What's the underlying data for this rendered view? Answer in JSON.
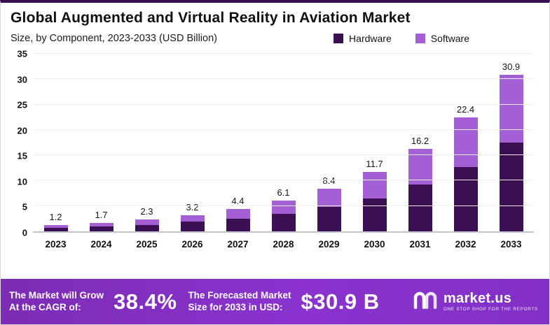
{
  "header": {
    "title": "Global Augmented and Virtual Reality in Aviation Market",
    "subtitle": "Size, by Component, 2023-2033 (USD Billion)"
  },
  "legend": [
    {
      "label": "Hardware",
      "color": "#3b1053"
    },
    {
      "label": "Software",
      "color": "#a55fd5"
    }
  ],
  "chart_data": {
    "type": "bar",
    "stacked": true,
    "title": "Global Augmented and Virtual Reality in Aviation Market",
    "subtitle": "Size, by Component, 2023-2033 (USD Billion)",
    "categories": [
      "2023",
      "2024",
      "2025",
      "2026",
      "2027",
      "2028",
      "2029",
      "2030",
      "2031",
      "2032",
      "2033"
    ],
    "series": [
      {
        "name": "Hardware",
        "color": "#3b1053",
        "values": [
          0.7,
          1.0,
          1.3,
          1.9,
          2.5,
          3.5,
          4.8,
          6.5,
          9.2,
          12.7,
          17.5
        ]
      },
      {
        "name": "Software",
        "color": "#a55fd5",
        "values": [
          0.5,
          0.7,
          1.0,
          1.3,
          1.9,
          2.6,
          3.6,
          5.2,
          7.0,
          9.7,
          13.4
        ]
      }
    ],
    "totals": [
      "1.2",
      "1.7",
      "2.3",
      "3.2",
      "4.4",
      "6.1",
      "8.4",
      "11.7",
      "16.2",
      "22.4",
      "30.9"
    ],
    "xlabel": "",
    "ylabel": "",
    "ylim": [
      0,
      35
    ],
    "yticks": [
      0,
      5,
      10,
      15,
      20,
      25,
      30,
      35
    ],
    "grid": true,
    "legend_position": "top"
  },
  "footer": {
    "growth_label_line1": "The Market will Grow",
    "growth_label_line2": "At the CAGR of:",
    "cagr_value": "38.4%",
    "forecast_label_line1": "The Forecasted Market",
    "forecast_label_line2": "Size for 2033 in USD:",
    "forecast_value": "$30.9 B",
    "brand_name": "market.us",
    "brand_tagline": "ONE STOP SHOP FOR THE REPORTS"
  }
}
